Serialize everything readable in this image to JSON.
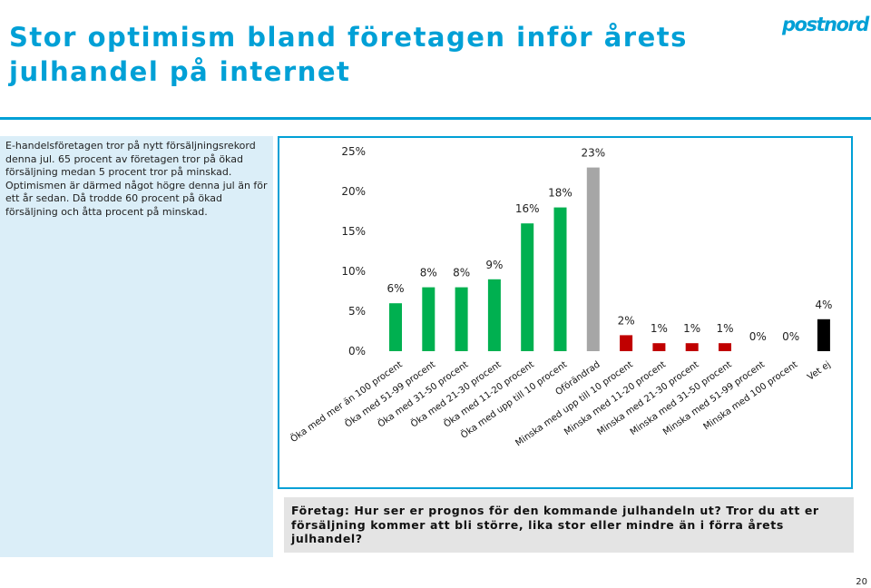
{
  "slide": {
    "title": "Stor optimism bland företagen inför årets julhandel på internet",
    "logo_text": "postnord",
    "intro": "E-handelsföretagen tror på nytt försäljningsrekord denna jul. 65 procent av företagen tror på ökad försäljning medan 5 procent tror på minskad. Optimismen är därmed något högre denna jul än för ett år sedan. Då trodde 60 procent på ökad försäljning och åtta procent på minskad.",
    "question": "Företag: Hur ser er prognos för den kommande julhandeln ut? Tror du att er försäljning kommer att bli större, lika stor eller mindre än i förra årets julhandel?",
    "page_number": "20"
  },
  "colors": {
    "accent": "#00a0d6",
    "increase": "#00b050",
    "unchanged": "#a6a6a6",
    "decrease": "#c00000",
    "dont_know": "#000000"
  },
  "chart_data": {
    "type": "bar",
    "categories": [
      "Öka med mer än 100 procent",
      "Öka med 51-99 procent",
      "Öka med 31-50 procent",
      "Öka med 21-30 procent",
      "Öka med 11-20 procent",
      "Öka med upp till 10 procent",
      "Oförändrad",
      "Minska med upp till 10 procent",
      "Minska med 11-20 procent",
      "Minska med 21-30 procent",
      "Minska med 31-50 procent",
      "Minska med 51-99 procent",
      "Minska med 100 procent",
      "Vet ej"
    ],
    "values": [
      6,
      8,
      8,
      9,
      16,
      18,
      23,
      2,
      1,
      1,
      1,
      0,
      0,
      4
    ],
    "value_labels": [
      "6%",
      "8%",
      "8%",
      "9%",
      "16%",
      "18%",
      "23%",
      "2%",
      "1%",
      "1%",
      "1%",
      "0%",
      "0%",
      "4%"
    ],
    "bar_color_keys": [
      "increase",
      "increase",
      "increase",
      "increase",
      "increase",
      "increase",
      "unchanged",
      "decrease",
      "decrease",
      "decrease",
      "decrease",
      "decrease",
      "decrease",
      "dont_know"
    ],
    "y_ticks": [
      "0%",
      "5%",
      "10%",
      "15%",
      "20%",
      "25%"
    ],
    "y_tick_values": [
      0,
      5,
      10,
      15,
      20,
      25
    ],
    "ylim": [
      0,
      25
    ],
    "grid": false,
    "legend": "none",
    "title": "",
    "xlabel": "",
    "ylabel": ""
  }
}
